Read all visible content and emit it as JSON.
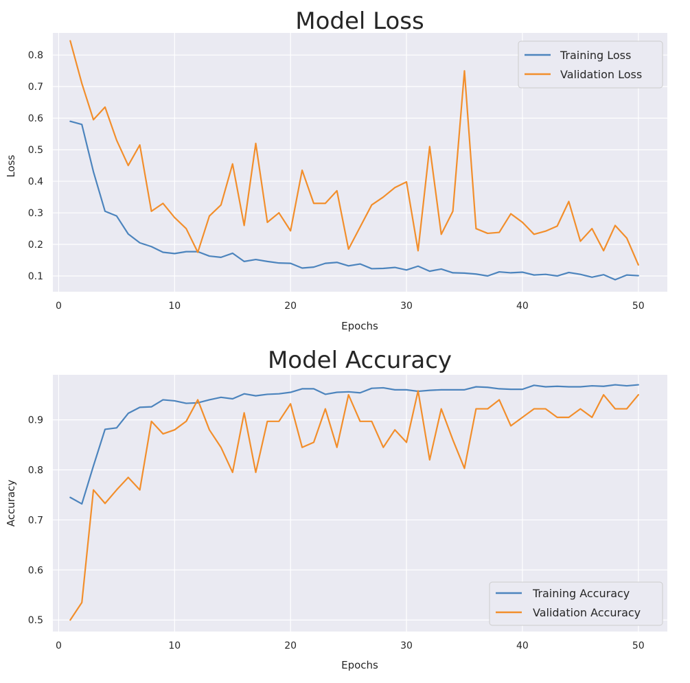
{
  "chart_data": [
    {
      "type": "line",
      "title": "Model Loss",
      "xlabel": "Epochs",
      "ylabel": "Loss",
      "xlim": [
        -0.5,
        52.5
      ],
      "ylim": [
        0.05,
        0.87
      ],
      "xticks": [
        0,
        10,
        20,
        30,
        40,
        50
      ],
      "yticks": [
        0.1,
        0.2,
        0.3,
        0.4,
        0.5,
        0.6,
        0.7,
        0.8
      ],
      "xtick_labels": [
        "0",
        "10",
        "20",
        "30",
        "40",
        "50"
      ],
      "ytick_labels": [
        "0.1",
        "0.2",
        "0.3",
        "0.4",
        "0.5",
        "0.6",
        "0.7",
        "0.8"
      ],
      "legend": "upper-right",
      "grid": true,
      "x": [
        1,
        2,
        3,
        4,
        5,
        6,
        7,
        8,
        9,
        10,
        11,
        12,
        13,
        14,
        15,
        16,
        17,
        18,
        19,
        20,
        21,
        22,
        23,
        24,
        25,
        26,
        27,
        28,
        29,
        30,
        31,
        32,
        33,
        34,
        35,
        36,
        37,
        38,
        39,
        40,
        41,
        42,
        43,
        44,
        45,
        46,
        47,
        48,
        49,
        50
      ],
      "series": [
        {
          "name": "Training Loss",
          "color": "#4c84bd",
          "values": [
            0.59,
            0.58,
            0.43,
            0.305,
            0.29,
            0.233,
            0.205,
            0.193,
            0.175,
            0.171,
            0.177,
            0.177,
            0.163,
            0.159,
            0.172,
            0.146,
            0.152,
            0.146,
            0.141,
            0.14,
            0.125,
            0.128,
            0.14,
            0.143,
            0.132,
            0.138,
            0.123,
            0.124,
            0.127,
            0.119,
            0.131,
            0.115,
            0.122,
            0.11,
            0.109,
            0.106,
            0.1,
            0.113,
            0.11,
            0.112,
            0.103,
            0.105,
            0.1,
            0.111,
            0.105,
            0.096,
            0.104,
            0.088,
            0.103,
            0.101
          ]
        },
        {
          "name": "Validation Loss",
          "color": "#f28e2b",
          "values": [
            0.845,
            0.71,
            0.595,
            0.635,
            0.53,
            0.45,
            0.515,
            0.305,
            0.33,
            0.285,
            0.25,
            0.175,
            0.29,
            0.325,
            0.455,
            0.26,
            0.52,
            0.27,
            0.3,
            0.243,
            0.435,
            0.33,
            0.33,
            0.37,
            0.185,
            0.255,
            0.325,
            0.35,
            0.38,
            0.398,
            0.18,
            0.51,
            0.232,
            0.305,
            0.75,
            0.25,
            0.235,
            0.238,
            0.297,
            0.27,
            0.232,
            0.242,
            0.258,
            0.336,
            0.21,
            0.25,
            0.18,
            0.26,
            0.22,
            0.135
          ]
        }
      ]
    },
    {
      "type": "line",
      "title": "Model Accuracy",
      "xlabel": "Epochs",
      "ylabel": "Accuracy",
      "xlim": [
        -0.5,
        52.5
      ],
      "ylim": [
        0.477,
        0.99
      ],
      "xticks": [
        0,
        10,
        20,
        30,
        40,
        50
      ],
      "yticks": [
        0.5,
        0.6,
        0.7,
        0.8,
        0.9
      ],
      "xtick_labels": [
        "0",
        "10",
        "20",
        "30",
        "40",
        "50"
      ],
      "ytick_labels": [
        "0.5",
        "0.6",
        "0.7",
        "0.8",
        "0.9"
      ],
      "legend": "lower-right",
      "grid": true,
      "x": [
        1,
        2,
        3,
        4,
        5,
        6,
        7,
        8,
        9,
        10,
        11,
        12,
        13,
        14,
        15,
        16,
        17,
        18,
        19,
        20,
        21,
        22,
        23,
        24,
        25,
        26,
        27,
        28,
        29,
        30,
        31,
        32,
        33,
        34,
        35,
        36,
        37,
        38,
        39,
        40,
        41,
        42,
        43,
        44,
        45,
        46,
        47,
        48,
        49,
        50
      ],
      "series": [
        {
          "name": "Training Accuracy",
          "color": "#4c84bd",
          "values": [
            0.745,
            0.732,
            0.808,
            0.881,
            0.884,
            0.913,
            0.925,
            0.926,
            0.94,
            0.938,
            0.933,
            0.934,
            0.94,
            0.945,
            0.942,
            0.952,
            0.948,
            0.951,
            0.952,
            0.955,
            0.962,
            0.962,
            0.951,
            0.955,
            0.956,
            0.954,
            0.963,
            0.964,
            0.96,
            0.96,
            0.957,
            0.959,
            0.96,
            0.96,
            0.96,
            0.966,
            0.965,
            0.962,
            0.961,
            0.961,
            0.969,
            0.966,
            0.967,
            0.966,
            0.966,
            0.968,
            0.967,
            0.97,
            0.968,
            0.97
          ]
        },
        {
          "name": "Validation Accuracy",
          "color": "#f28e2b",
          "values": [
            0.5,
            0.535,
            0.76,
            0.733,
            0.76,
            0.785,
            0.76,
            0.897,
            0.872,
            0.88,
            0.897,
            0.94,
            0.88,
            0.845,
            0.795,
            0.914,
            0.795,
            0.897,
            0.897,
            0.932,
            0.845,
            0.855,
            0.922,
            0.845,
            0.95,
            0.897,
            0.897,
            0.845,
            0.88,
            0.855,
            0.958,
            0.82,
            0.922,
            0.86,
            0.803,
            0.922,
            0.922,
            0.94,
            0.888,
            0.905,
            0.922,
            0.922,
            0.905,
            0.905,
            0.922,
            0.905,
            0.95,
            0.922,
            0.922,
            0.95
          ]
        }
      ]
    }
  ]
}
